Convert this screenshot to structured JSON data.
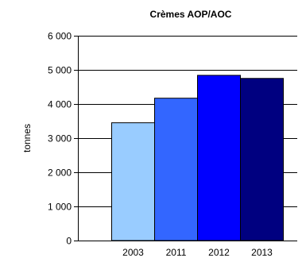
{
  "chart_data": {
    "type": "bar",
    "title": "Crèmes AOP/AOC",
    "ylabel": "tonnes",
    "xlabel": "",
    "categories": [
      "2003",
      "2011",
      "2012",
      "2013"
    ],
    "values": [
      3450,
      4170,
      4840,
      4750
    ],
    "ylim": [
      0,
      6000
    ],
    "yticks": [
      0,
      1000,
      2000,
      3000,
      4000,
      5000,
      6000
    ],
    "ytick_labels": [
      "0",
      "1 000",
      "2 000",
      "3 000",
      "4 000",
      "5 000",
      "6 000"
    ],
    "grid": true,
    "colors": [
      "#99CCFF",
      "#3366FF",
      "#0000FF",
      "#000080"
    ]
  }
}
